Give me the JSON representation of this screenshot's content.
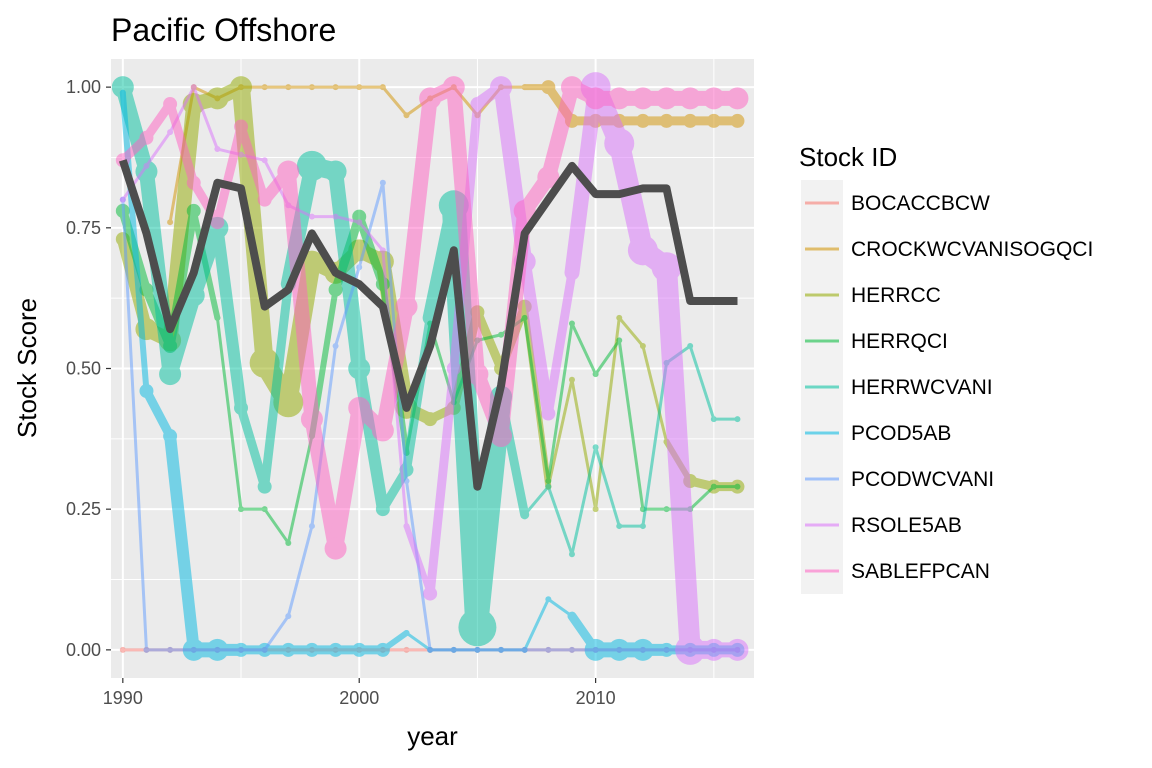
{
  "chart_data": {
    "type": "line",
    "title": "Pacific Offshore",
    "xlabel": "year",
    "ylabel": "Stock Score",
    "xlim": [
      1989.5,
      2016.7
    ],
    "ylim": [
      -0.05,
      1.05
    ],
    "x_ticks": [
      1990,
      2000,
      2010
    ],
    "x_tick_labels": [
      "1990",
      "2000",
      "2010"
    ],
    "y_ticks": [
      0,
      0.25,
      0.5,
      0.75,
      1
    ],
    "y_tick_labels": [
      "0.00",
      "0.25",
      "0.50",
      "0.75",
      "1.00"
    ],
    "grid": true,
    "legend": {
      "title": "Stock ID",
      "position": "right"
    },
    "x": [
      1990,
      1991,
      1992,
      1993,
      1994,
      1995,
      1996,
      1997,
      1998,
      1999,
      2000,
      2001,
      2002,
      2003,
      2004,
      2005,
      2006,
      2007,
      2008,
      2009,
      2010,
      2011,
      2012,
      2013,
      2014,
      2015,
      2016
    ],
    "series": [
      {
        "name": "BOCACCBCW",
        "color": "#F8766D",
        "values": [
          0,
          0,
          0,
          0,
          0,
          0,
          0,
          0,
          0,
          0,
          0,
          0,
          0,
          0,
          0,
          0,
          0,
          0,
          0,
          0,
          0,
          0,
          0,
          0,
          0,
          0,
          0
        ],
        "sizes": [
          1,
          1,
          1,
          1,
          1,
          1,
          1,
          1,
          1,
          1,
          1,
          1,
          1,
          1,
          1,
          1,
          1,
          1,
          1,
          1,
          1,
          1,
          1,
          1,
          1,
          1,
          1
        ]
      },
      {
        "name": "CROCKWCVANISOGQCI",
        "color": "#D39200",
        "values": [
          null,
          null,
          0.76,
          1.0,
          0.98,
          1.0,
          1.0,
          1.0,
          1.0,
          1.0,
          1.0,
          1.0,
          0.95,
          0.98,
          1.0,
          0.95,
          1.0,
          1.0,
          1.0,
          0.94,
          0.94,
          0.94,
          0.94,
          0.94,
          0.94,
          0.94,
          0.94
        ],
        "sizes": [
          1,
          1,
          1,
          1,
          1,
          1,
          1,
          1,
          1,
          1,
          1,
          1,
          1,
          1,
          1,
          1,
          1,
          1,
          2,
          2,
          2,
          2,
          2,
          2,
          2,
          2,
          2
        ]
      },
      {
        "name": "HERRCC",
        "color": "#93AA00",
        "values": [
          0.73,
          0.57,
          0.55,
          0.97,
          0.98,
          1.0,
          0.51,
          0.44,
          0.69,
          0.67,
          0.71,
          0.69,
          0.43,
          0.41,
          0.43,
          0.6,
          0.5,
          0.61,
          0.29,
          0.48,
          0.25,
          0.59,
          0.54,
          0.37,
          0.3,
          0.29,
          0.29
        ],
        "sizes": [
          2,
          3,
          3,
          3,
          3,
          3,
          4,
          4,
          3,
          3,
          3,
          3,
          3,
          2,
          2,
          2,
          2,
          2,
          1,
          1,
          1,
          1,
          1,
          1,
          2,
          2,
          2
        ]
      },
      {
        "name": "HERRQCI",
        "color": "#00BA38",
        "values": [
          0.78,
          0.64,
          0.54,
          0.78,
          0.59,
          0.25,
          0.25,
          0.19,
          0.38,
          0.64,
          0.77,
          0.65,
          0.35,
          0.58,
          0.44,
          0.55,
          0.56,
          0.59,
          0.3,
          0.58,
          0.49,
          0.55,
          0.25,
          0.25,
          0.25,
          0.29,
          0.29
        ],
        "sizes": [
          2,
          2,
          2,
          2,
          1,
          1,
          1,
          1,
          1,
          2,
          2,
          2,
          1,
          1,
          1,
          1,
          1,
          1,
          1,
          1,
          1,
          1,
          1,
          1,
          1,
          1,
          1
        ]
      },
      {
        "name": "HERRWCVANI",
        "color": "#00C19F",
        "values": [
          1.0,
          0.85,
          0.49,
          0.63,
          0.75,
          0.43,
          0.29,
          0.65,
          0.86,
          0.85,
          0.5,
          0.25,
          0.32,
          0.59,
          0.79,
          0.04,
          0.45,
          0.24,
          0.29,
          0.17,
          0.36,
          0.22,
          0.22,
          0.51,
          0.54,
          0.41,
          0.41
        ],
        "sizes": [
          3,
          3,
          3,
          3,
          3,
          2,
          2,
          2,
          4,
          3,
          3,
          2,
          2,
          2,
          4,
          5,
          3,
          1,
          1,
          1,
          1,
          1,
          1,
          1,
          1,
          1,
          1
        ]
      },
      {
        "name": "PCOD5AB",
        "color": "#00B9E3",
        "values": [
          0.99,
          0.46,
          0.38,
          0,
          0,
          0,
          0,
          0,
          0,
          0,
          0,
          0,
          0.03,
          0,
          0,
          0,
          0,
          0,
          0.09,
          0.06,
          0,
          0,
          0,
          0,
          0,
          0,
          0
        ],
        "sizes": [
          1,
          2,
          2,
          3,
          3,
          2,
          2,
          2,
          2,
          2,
          2,
          2,
          1,
          1,
          1,
          1,
          1,
          1,
          1,
          1,
          3,
          3,
          3,
          2,
          2,
          2,
          2
        ]
      },
      {
        "name": "PCODWCVANI",
        "color": "#619CFF",
        "values": [
          0.8,
          0,
          0,
          0,
          0,
          0,
          0,
          0.06,
          0.22,
          0.54,
          0.68,
          0.83,
          0.3,
          0,
          0,
          0,
          0,
          0,
          0,
          0,
          0,
          0,
          0,
          0,
          0,
          0,
          0
        ],
        "sizes": [
          1,
          1,
          1,
          1,
          1,
          1,
          1,
          1,
          1,
          1,
          1,
          1,
          1,
          1,
          1,
          1,
          1,
          1,
          1,
          1,
          1,
          1,
          1,
          1,
          1,
          1,
          1
        ]
      },
      {
        "name": "RSOLE5AB",
        "color": "#DB72FB",
        "values": [
          0.8,
          0.86,
          0.92,
          1.0,
          0.89,
          0.88,
          0.87,
          0.79,
          0.77,
          0.77,
          0.76,
          0.71,
          0.22,
          0.1,
          0.5,
          0.97,
          1.0,
          0.69,
          0.42,
          0.67,
          1.0,
          0.9,
          0.71,
          0.68,
          0.0,
          0.0,
          0.0
        ],
        "sizes": [
          1,
          1,
          1,
          1,
          1,
          1,
          1,
          1,
          1,
          1,
          1,
          1,
          1,
          2,
          2,
          2,
          3,
          3,
          2,
          2,
          4,
          4,
          4,
          4,
          4,
          3,
          3
        ]
      },
      {
        "name": "SABLEFPCAN",
        "color": "#FF61C3",
        "values": [
          0.87,
          0.91,
          0.97,
          0.83,
          0.76,
          0.93,
          0.8,
          0.85,
          0.41,
          0.18,
          0.43,
          0.39,
          0.61,
          0.98,
          1.0,
          0.49,
          0.38,
          0.78,
          0.84,
          1.0,
          0.98,
          0.98,
          0.98,
          0.98,
          0.98,
          0.98,
          0.98
        ],
        "sizes": [
          2,
          2,
          2,
          2,
          2,
          2,
          2,
          3,
          3,
          3,
          3,
          3,
          3,
          3,
          3,
          3,
          3,
          3,
          3,
          3,
          3,
          3,
          3,
          3,
          3,
          3,
          3
        ]
      }
    ],
    "mean_line": {
      "color": "#4D4D4D",
      "values": [
        0.87,
        0.74,
        0.57,
        0.67,
        0.83,
        0.82,
        0.61,
        0.64,
        0.74,
        0.67,
        0.65,
        0.61,
        0.43,
        0.54,
        0.71,
        0.29,
        0.47,
        0.74,
        0.8,
        0.86,
        0.81,
        0.81,
        0.82,
        0.82,
        0.62,
        0.62,
        0.62
      ]
    }
  }
}
